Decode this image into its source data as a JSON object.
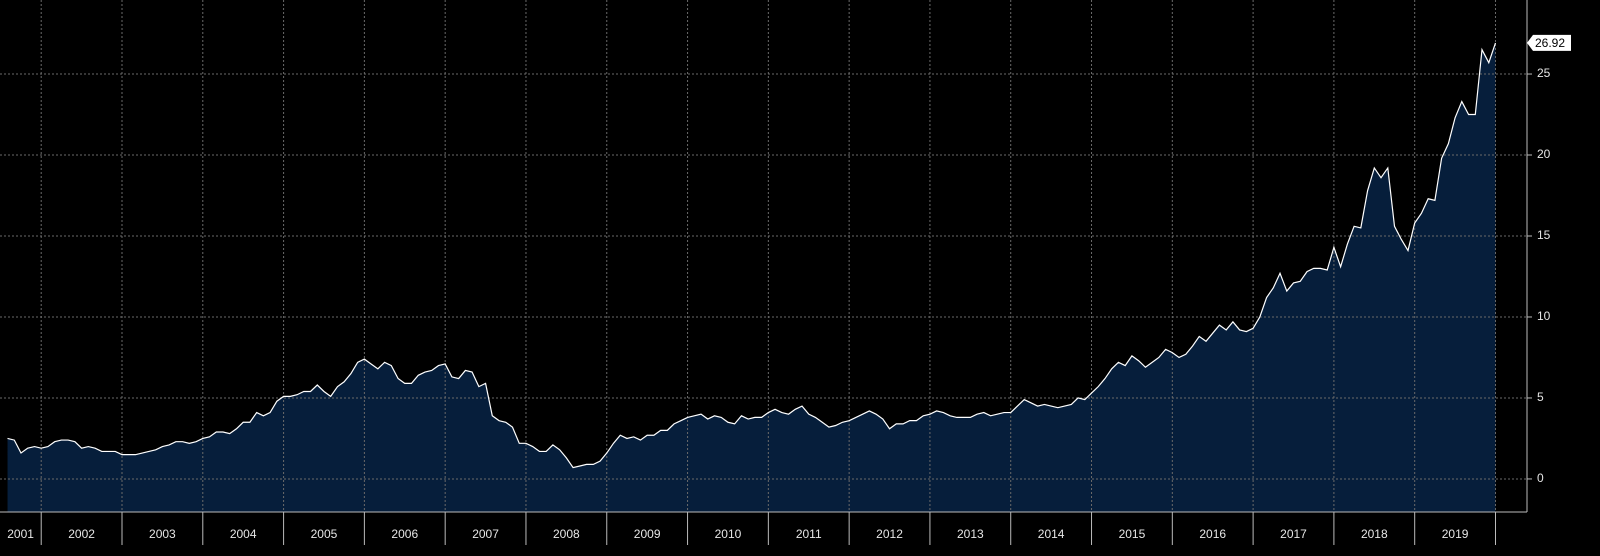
{
  "chart_data": {
    "type": "area",
    "x": [
      2001.583,
      2001.667,
      2001.75,
      2001.833,
      2001.917,
      2002,
      2002.083,
      2002.167,
      2002.25,
      2002.333,
      2002.417,
      2002.5,
      2002.583,
      2002.667,
      2002.75,
      2002.833,
      2002.917,
      2003,
      2003.083,
      2003.167,
      2003.25,
      2003.333,
      2003.417,
      2003.5,
      2003.583,
      2003.667,
      2003.75,
      2003.833,
      2003.917,
      2004,
      2004.083,
      2004.167,
      2004.25,
      2004.333,
      2004.417,
      2004.5,
      2004.583,
      2004.667,
      2004.75,
      2004.833,
      2004.917,
      2005,
      2005.083,
      2005.167,
      2005.25,
      2005.333,
      2005.417,
      2005.5,
      2005.583,
      2005.667,
      2005.75,
      2005.833,
      2005.917,
      2006,
      2006.083,
      2006.167,
      2006.25,
      2006.333,
      2006.417,
      2006.5,
      2006.583,
      2006.667,
      2006.75,
      2006.833,
      2006.917,
      2007,
      2007.083,
      2007.167,
      2007.25,
      2007.333,
      2007.417,
      2007.5,
      2007.583,
      2007.667,
      2007.75,
      2007.833,
      2007.917,
      2008,
      2008.083,
      2008.167,
      2008.25,
      2008.333,
      2008.417,
      2008.5,
      2008.583,
      2008.667,
      2008.75,
      2008.833,
      2008.917,
      2009,
      2009.083,
      2009.167,
      2009.25,
      2009.333,
      2009.417,
      2009.5,
      2009.583,
      2009.667,
      2009.75,
      2009.833,
      2009.917,
      2010,
      2010.083,
      2010.167,
      2010.25,
      2010.333,
      2010.417,
      2010.5,
      2010.583,
      2010.667,
      2010.75,
      2010.833,
      2010.917,
      2011,
      2011.083,
      2011.167,
      2011.25,
      2011.333,
      2011.417,
      2011.5,
      2011.583,
      2011.667,
      2011.75,
      2011.833,
      2011.917,
      2012,
      2012.083,
      2012.167,
      2012.25,
      2012.333,
      2012.417,
      2012.5,
      2012.583,
      2012.667,
      2012.75,
      2012.833,
      2012.917,
      2013,
      2013.083,
      2013.167,
      2013.25,
      2013.333,
      2013.417,
      2013.5,
      2013.583,
      2013.667,
      2013.75,
      2013.833,
      2013.917,
      2014,
      2014.083,
      2014.167,
      2014.25,
      2014.333,
      2014.417,
      2014.5,
      2014.583,
      2014.667,
      2014.75,
      2014.833,
      2014.917,
      2015,
      2015.083,
      2015.167,
      2015.25,
      2015.333,
      2015.417,
      2015.5,
      2015.583,
      2015.667,
      2015.75,
      2015.833,
      2015.917,
      2016,
      2016.083,
      2016.167,
      2016.25,
      2016.333,
      2016.417,
      2016.5,
      2016.583,
      2016.667,
      2016.75,
      2016.833,
      2016.917,
      2017,
      2017.083,
      2017.167,
      2017.25,
      2017.333,
      2017.417,
      2017.5,
      2017.583,
      2017.667,
      2017.75,
      2017.833,
      2017.917,
      2018,
      2018.083,
      2018.167,
      2018.25,
      2018.333,
      2018.417,
      2018.5,
      2018.583,
      2018.667,
      2018.75,
      2018.833,
      2018.917,
      2019,
      2019.083,
      2019.167,
      2019.25,
      2019.333,
      2019.417,
      2019.5,
      2019.583,
      2019.667,
      2019.75,
      2019.833,
      2019.917,
      2020
    ],
    "values": [
      2.5,
      2.4,
      1.6,
      1.9,
      2.0,
      1.9,
      2.0,
      2.3,
      2.4,
      2.4,
      2.3,
      1.9,
      2.0,
      1.9,
      1.7,
      1.7,
      1.7,
      1.5,
      1.5,
      1.5,
      1.6,
      1.7,
      1.8,
      2.0,
      2.1,
      2.3,
      2.3,
      2.2,
      2.3,
      2.5,
      2.6,
      2.9,
      2.9,
      2.8,
      3.1,
      3.5,
      3.5,
      4.1,
      3.9,
      4.1,
      4.8,
      5.1,
      5.1,
      5.2,
      5.4,
      5.4,
      5.8,
      5.4,
      5.1,
      5.7,
      6.0,
      6.5,
      7.2,
      7.4,
      7.1,
      6.8,
      7.2,
      7.0,
      6.2,
      5.9,
      5.9,
      6.4,
      6.6,
      6.7,
      7.0,
      7.1,
      6.3,
      6.2,
      6.7,
      6.6,
      5.7,
      5.9,
      3.9,
      3.6,
      3.5,
      3.2,
      2.2,
      2.2,
      2.0,
      1.7,
      1.7,
      2.1,
      1.8,
      1.3,
      0.7,
      0.8,
      0.9,
      0.9,
      1.1,
      1.6,
      2.2,
      2.7,
      2.5,
      2.6,
      2.4,
      2.7,
      2.7,
      3.0,
      3.0,
      3.4,
      3.6,
      3.8,
      3.9,
      4.0,
      3.7,
      3.9,
      3.8,
      3.5,
      3.4,
      3.9,
      3.7,
      3.8,
      3.8,
      4.1,
      4.3,
      4.1,
      4.0,
      4.3,
      4.5,
      4.0,
      3.8,
      3.5,
      3.2,
      3.3,
      3.5,
      3.6,
      3.8,
      4.0,
      4.2,
      4.0,
      3.7,
      3.1,
      3.4,
      3.4,
      3.6,
      3.6,
      3.9,
      4.0,
      4.2,
      4.1,
      3.9,
      3.8,
      3.8,
      3.8,
      4.0,
      4.1,
      3.9,
      4.0,
      4.1,
      4.1,
      4.5,
      4.9,
      4.7,
      4.5,
      4.6,
      4.5,
      4.4,
      4.5,
      4.6,
      5.0,
      4.9,
      5.3,
      5.7,
      6.2,
      6.8,
      7.2,
      7.0,
      7.6,
      7.3,
      6.9,
      7.2,
      7.5,
      8.0,
      7.8,
      7.5,
      7.7,
      8.2,
      8.8,
      8.5,
      9.0,
      9.5,
      9.2,
      9.7,
      9.2,
      9.1,
      9.3,
      10.0,
      11.2,
      11.8,
      12.7,
      11.6,
      12.1,
      12.2,
      12.8,
      13.0,
      13.0,
      12.9,
      14.3,
      13.1,
      14.5,
      15.6,
      15.5,
      17.8,
      19.2,
      18.6,
      19.2,
      15.6,
      14.8,
      14.1,
      15.8,
      16.4,
      17.3,
      17.2,
      19.8,
      20.7,
      22.3,
      23.3,
      22.5,
      22.5,
      26.5,
      25.7,
      26.92
    ],
    "color": "#ffffff",
    "fill": "#061e3b",
    "xlim": [
      2001.49,
      2020.39
    ],
    "ylim": [
      -2.04,
      29.57
    ],
    "xticks": [
      2002,
      2003,
      2004,
      2005,
      2006,
      2007,
      2008,
      2009,
      2010,
      2011,
      2012,
      2013,
      2014,
      2015,
      2016,
      2017,
      2018,
      2019,
      2020
    ],
    "xtick_labels": [
      {
        "value": 2001.5,
        "label": "2001"
      },
      {
        "value": 2002.5,
        "label": "2002"
      },
      {
        "value": 2003.5,
        "label": "2003"
      },
      {
        "value": 2004.5,
        "label": "2004"
      },
      {
        "value": 2005.5,
        "label": "2005"
      },
      {
        "value": 2006.5,
        "label": "2006"
      },
      {
        "value": 2007.5,
        "label": "2007"
      },
      {
        "value": 2008.5,
        "label": "2008"
      },
      {
        "value": 2009.5,
        "label": "2009"
      },
      {
        "value": 2010.5,
        "label": "2010"
      },
      {
        "value": 2011.5,
        "label": "2011"
      },
      {
        "value": 2012.5,
        "label": "2012"
      },
      {
        "value": 2013.5,
        "label": "2013"
      },
      {
        "value": 2014.5,
        "label": "2014"
      },
      {
        "value": 2015.5,
        "label": "2015"
      },
      {
        "value": 2016.5,
        "label": "2016"
      },
      {
        "value": 2017.5,
        "label": "2017"
      },
      {
        "value": 2018.5,
        "label": "2018"
      },
      {
        "value": 2019.5,
        "label": "2019"
      }
    ],
    "yticks": [
      0,
      5,
      10,
      15,
      20,
      25
    ],
    "grid": true
  }
}
